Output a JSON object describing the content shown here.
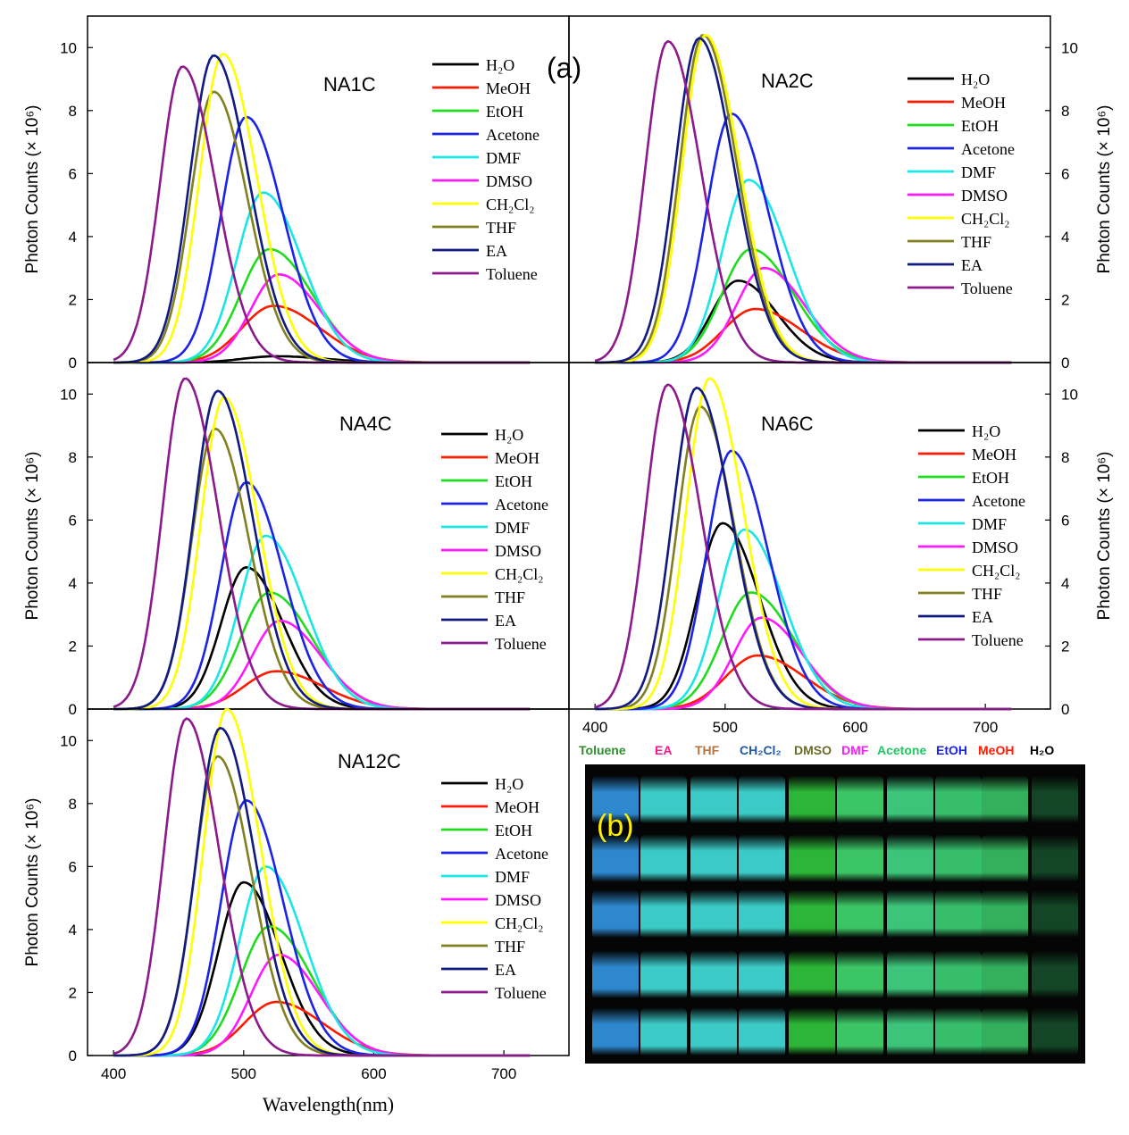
{
  "figure_label_a": "(a)",
  "figure_label_b": "(b)",
  "legend_labels": [
    "H₂O",
    "MeOH",
    "EtOH",
    "Acetone",
    "DMF",
    "DMSO",
    "CH₂Cl₂",
    "THF",
    "EA",
    "Toluene"
  ],
  "series_colors": [
    "#000000",
    "#ff1a00",
    "#1fdc1f",
    "#1a23e6",
    "#1ae6e6",
    "#ff19ff",
    "#ffff00",
    "#808020",
    "#101a80",
    "#8c1a8c"
  ],
  "photo_labels": [
    {
      "text": "Toluene",
      "color": "#2f8f2f"
    },
    {
      "text": "EA",
      "color": "#ff1a8c"
    },
    {
      "text": "THF",
      "color": "#b8733d"
    },
    {
      "text": "CH₂Cl₂",
      "color": "#1f5aa8"
    },
    {
      "text": "DMSO",
      "color": "#6b6b2a"
    },
    {
      "text": "DMF",
      "color": "#ff19ff"
    },
    {
      "text": "Acetone",
      "color": "#1fc860"
    },
    {
      "text": "EtOH",
      "color": "#1a23e6"
    },
    {
      "text": "MeOH",
      "color": "#ff1a00"
    },
    {
      "text": "H₂O",
      "color": "#000000"
    }
  ],
  "vial_colors": [
    "#2f8fd8",
    "#3fd4d0",
    "#3fd4d0",
    "#3fd4d0",
    "#2ebe3a",
    "#3fcf6a",
    "#3fcf80",
    "#3ac870",
    "#36b860",
    "#1f7a40"
  ],
  "chart_data": [
    {
      "type": "line",
      "title": "NA1C",
      "xlabel": "",
      "ylabel": "Photon Counts (× 10⁶)",
      "xlim": [
        380,
        750
      ],
      "ylim": [
        0,
        11
      ],
      "xticks": [],
      "yticks": [
        0,
        2,
        4,
        6,
        8,
        10
      ],
      "y_axis_side": "left",
      "series": [
        {
          "name": "H₂O",
          "peak_x": 525,
          "peak_y": 0.2,
          "width": 50
        },
        {
          "name": "MeOH",
          "peak_x": 523,
          "peak_y": 1.8,
          "width": 48
        },
        {
          "name": "EtOH",
          "peak_x": 520,
          "peak_y": 3.6,
          "width": 44
        },
        {
          "name": "Acetone",
          "peak_x": 502,
          "peak_y": 7.8,
          "width": 38
        },
        {
          "name": "DMF",
          "peak_x": 515,
          "peak_y": 5.4,
          "width": 40
        },
        {
          "name": "DMSO",
          "peak_x": 527,
          "peak_y": 2.8,
          "width": 42
        },
        {
          "name": "CH₂Cl₂",
          "peak_x": 484,
          "peak_y": 9.8,
          "width": 35
        },
        {
          "name": "THF",
          "peak_x": 477,
          "peak_y": 8.6,
          "width": 35
        },
        {
          "name": "EA",
          "peak_x": 477,
          "peak_y": 9.75,
          "width": 36
        },
        {
          "name": "Toluene",
          "peak_x": 453,
          "peak_y": 9.4,
          "width": 34
        }
      ]
    },
    {
      "type": "line",
      "title": "NA2C",
      "xlabel": "",
      "ylabel": "Photon Counts (× 10⁶)",
      "xlim": [
        380,
        750
      ],
      "ylim": [
        0,
        11
      ],
      "xticks": [],
      "yticks": [
        0,
        2,
        4,
        6,
        8,
        10
      ],
      "y_axis_side": "right",
      "series": [
        {
          "name": "H₂O",
          "peak_x": 510,
          "peak_y": 2.6,
          "width": 40
        },
        {
          "name": "MeOH",
          "peak_x": 523,
          "peak_y": 1.7,
          "width": 48
        },
        {
          "name": "EtOH",
          "peak_x": 520,
          "peak_y": 3.6,
          "width": 44
        },
        {
          "name": "Acetone",
          "peak_x": 505,
          "peak_y": 7.9,
          "width": 38
        },
        {
          "name": "DMF",
          "peak_x": 518,
          "peak_y": 5.8,
          "width": 40
        },
        {
          "name": "DMSO",
          "peak_x": 530,
          "peak_y": 3.0,
          "width": 42
        },
        {
          "name": "CH₂Cl₂",
          "peak_x": 485,
          "peak_y": 10.4,
          "width": 35
        },
        {
          "name": "THF",
          "peak_x": 483,
          "peak_y": 10.4,
          "width": 35
        },
        {
          "name": "EA",
          "peak_x": 480,
          "peak_y": 10.3,
          "width": 36
        },
        {
          "name": "Toluene",
          "peak_x": 456,
          "peak_y": 10.2,
          "width": 34
        }
      ]
    },
    {
      "type": "line",
      "title": "NA4C",
      "xlabel": "",
      "ylabel": "Photon Counts (× 10⁶)",
      "xlim": [
        380,
        750
      ],
      "ylim": [
        0,
        11
      ],
      "xticks": [],
      "yticks": [
        0,
        2,
        4,
        6,
        8,
        10
      ],
      "y_axis_side": "left",
      "series": [
        {
          "name": "H₂O",
          "peak_x": 502,
          "peak_y": 4.5,
          "width": 38
        },
        {
          "name": "MeOH",
          "peak_x": 525,
          "peak_y": 1.2,
          "width": 48
        },
        {
          "name": "EtOH",
          "peak_x": 520,
          "peak_y": 3.7,
          "width": 44
        },
        {
          "name": "Acetone",
          "peak_x": 502,
          "peak_y": 7.2,
          "width": 38
        },
        {
          "name": "DMF",
          "peak_x": 517,
          "peak_y": 5.5,
          "width": 40
        },
        {
          "name": "DMSO",
          "peak_x": 528,
          "peak_y": 2.8,
          "width": 42
        },
        {
          "name": "CH₂Cl₂",
          "peak_x": 485,
          "peak_y": 9.9,
          "width": 35
        },
        {
          "name": "THF",
          "peak_x": 478,
          "peak_y": 8.9,
          "width": 35
        },
        {
          "name": "EA",
          "peak_x": 480,
          "peak_y": 10.1,
          "width": 36
        },
        {
          "name": "Toluene",
          "peak_x": 455,
          "peak_y": 10.5,
          "width": 34
        }
      ]
    },
    {
      "type": "line",
      "title": "NA6C",
      "xlabel": "",
      "ylabel": "Photon Counts (× 10⁶)",
      "xlim": [
        380,
        750
      ],
      "ylim": [
        0,
        11
      ],
      "xticks": [
        400,
        500,
        600,
        700
      ],
      "yticks": [
        0,
        2,
        4,
        6,
        8,
        10
      ],
      "y_axis_side": "right",
      "series": [
        {
          "name": "H₂O",
          "peak_x": 498,
          "peak_y": 5.9,
          "width": 38
        },
        {
          "name": "MeOH",
          "peak_x": 525,
          "peak_y": 1.7,
          "width": 48
        },
        {
          "name": "EtOH",
          "peak_x": 520,
          "peak_y": 3.7,
          "width": 44
        },
        {
          "name": "Acetone",
          "peak_x": 505,
          "peak_y": 8.2,
          "width": 38
        },
        {
          "name": "DMF",
          "peak_x": 515,
          "peak_y": 5.7,
          "width": 40
        },
        {
          "name": "DMSO",
          "peak_x": 528,
          "peak_y": 2.9,
          "width": 42
        },
        {
          "name": "CH₂Cl₂",
          "peak_x": 488,
          "peak_y": 10.5,
          "width": 35
        },
        {
          "name": "THF",
          "peak_x": 481,
          "peak_y": 9.6,
          "width": 35
        },
        {
          "name": "EA",
          "peak_x": 478,
          "peak_y": 10.2,
          "width": 36
        },
        {
          "name": "Toluene",
          "peak_x": 456,
          "peak_y": 10.3,
          "width": 34
        }
      ]
    },
    {
      "type": "line",
      "title": "NA12C",
      "xlabel": "Wavelength(nm)",
      "ylabel": "Photon Counts (× 10⁶)",
      "xlim": [
        380,
        750
      ],
      "ylim": [
        0,
        11
      ],
      "xticks": [
        400,
        500,
        600,
        700
      ],
      "yticks": [
        0,
        2,
        4,
        6,
        8,
        10
      ],
      "y_axis_side": "left",
      "series": [
        {
          "name": "H₂O",
          "peak_x": 500,
          "peak_y": 5.5,
          "width": 38
        },
        {
          "name": "MeOH",
          "peak_x": 525,
          "peak_y": 1.7,
          "width": 48
        },
        {
          "name": "EtOH",
          "peak_x": 520,
          "peak_y": 4.1,
          "width": 44
        },
        {
          "name": "Acetone",
          "peak_x": 502,
          "peak_y": 8.1,
          "width": 38
        },
        {
          "name": "DMF",
          "peak_x": 517,
          "peak_y": 6.0,
          "width": 40
        },
        {
          "name": "DMSO",
          "peak_x": 527,
          "peak_y": 3.2,
          "width": 42
        },
        {
          "name": "CH₂Cl₂",
          "peak_x": 487,
          "peak_y": 11.0,
          "width": 35
        },
        {
          "name": "THF",
          "peak_x": 480,
          "peak_y": 9.5,
          "width": 35
        },
        {
          "name": "EA",
          "peak_x": 482,
          "peak_y": 10.4,
          "width": 36
        },
        {
          "name": "Toluene",
          "peak_x": 456,
          "peak_y": 10.7,
          "width": 34
        }
      ]
    }
  ]
}
